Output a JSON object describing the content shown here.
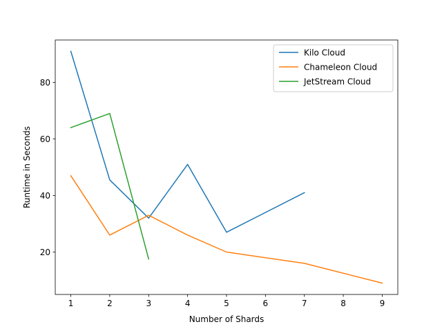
{
  "chart_data": {
    "type": "line",
    "title": "",
    "xlabel": "Number of Shards",
    "ylabel": "Runtime in Seconds",
    "xlim": [
      0.6,
      9.4
    ],
    "ylim": [
      5,
      95
    ],
    "xticks": [
      1,
      2,
      3,
      4,
      5,
      6,
      7,
      8,
      9
    ],
    "yticks": [
      20,
      40,
      60,
      80
    ],
    "grid": false,
    "legend_position": "top-right",
    "series": [
      {
        "name": "Kilo Cloud",
        "color": "#1f77b4",
        "x": [
          1,
          2,
          3,
          4,
          5,
          7
        ],
        "y": [
          91,
          45.5,
          32,
          51,
          27,
          41
        ]
      },
      {
        "name": "Chameleon Cloud",
        "color": "#ff7f0e",
        "x": [
          1,
          2,
          3,
          4,
          5,
          7,
          9
        ],
        "y": [
          47,
          26,
          33,
          26,
          20,
          16,
          9
        ]
      },
      {
        "name": "JetStream Cloud",
        "color": "#2ca02c",
        "x": [
          1,
          2,
          3
        ],
        "y": [
          64,
          69,
          17.5
        ]
      }
    ]
  }
}
